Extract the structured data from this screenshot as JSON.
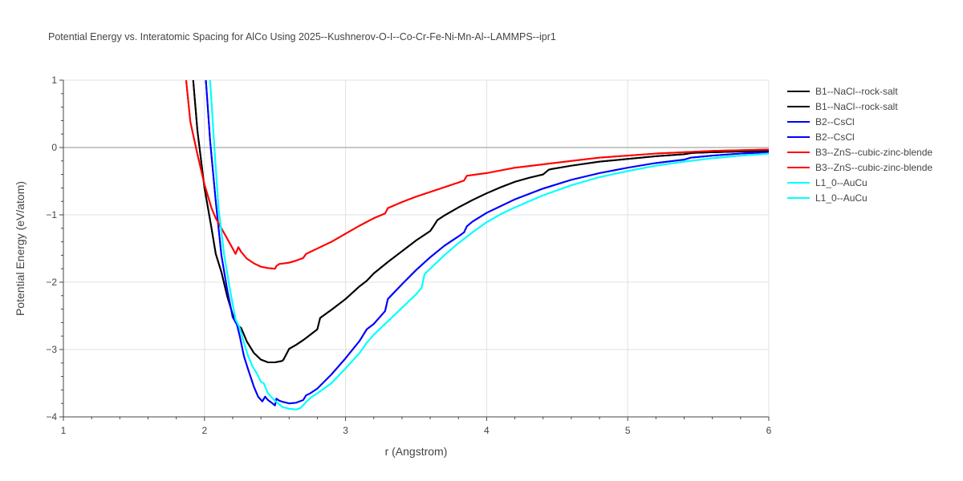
{
  "chart_data": {
    "type": "line",
    "title": "Potential Energy vs. Interatomic Spacing for AlCo Using 2025--Kushnerov-O-I--Co-Cr-Fe-Ni-Mn-Al--LAMMPS--ipr1",
    "xlabel": "r (Angstrom)",
    "ylabel": "Potential Energy (eV/atom)",
    "xlim": [
      1,
      6
    ],
    "ylim": [
      -4,
      1
    ],
    "xticks": [
      1,
      2,
      3,
      4,
      5,
      6
    ],
    "yticks": [
      1,
      0,
      -1,
      -2,
      -3,
      -4
    ],
    "grid": true,
    "legend_position": "right",
    "series": [
      {
        "name": "B1--NaCl--rock-salt",
        "color": "#000000",
        "x": [
          1.92,
          1.95,
          2.0,
          2.05,
          2.08,
          2.12,
          2.16,
          2.2,
          2.23,
          2.26,
          2.3,
          2.35,
          2.4,
          2.45,
          2.5,
          2.55,
          2.56,
          2.6,
          2.65,
          2.7,
          2.75,
          2.8,
          2.82,
          2.9,
          3.0,
          3.1,
          3.15,
          3.2,
          3.3,
          3.4,
          3.5,
          3.6,
          3.62,
          3.65,
          3.7,
          3.8,
          3.9,
          4.0,
          4.1,
          4.2,
          4.3,
          4.4,
          4.44,
          4.46,
          4.6,
          4.8,
          5.0,
          5.2,
          5.4,
          5.46,
          5.6,
          5.8,
          6.0
        ],
        "y": [
          1.0,
          0.25,
          -0.6,
          -1.2,
          -1.58,
          -1.85,
          -2.2,
          -2.48,
          -2.63,
          -2.68,
          -2.88,
          -3.05,
          -3.15,
          -3.19,
          -3.19,
          -3.17,
          -3.15,
          -2.99,
          -2.93,
          -2.86,
          -2.78,
          -2.7,
          -2.53,
          -2.41,
          -2.25,
          -2.06,
          -1.98,
          -1.87,
          -1.7,
          -1.54,
          -1.38,
          -1.24,
          -1.18,
          -1.08,
          -1.01,
          -0.89,
          -0.78,
          -0.68,
          -0.59,
          -0.51,
          -0.45,
          -0.4,
          -0.33,
          -0.32,
          -0.27,
          -0.21,
          -0.17,
          -0.13,
          -0.1,
          -0.08,
          -0.07,
          -0.06,
          -0.05
        ]
      },
      {
        "name": "B1--NaCl--rock-salt",
        "color": "#000000",
        "x": [
          1.92,
          1.95,
          2.0,
          2.05,
          2.08,
          2.12,
          2.16,
          2.2,
          2.23,
          2.26,
          2.3,
          2.35,
          2.4,
          2.45,
          2.5,
          2.55,
          2.56,
          2.6,
          2.65,
          2.7,
          2.75,
          2.8,
          2.82,
          2.9,
          3.0,
          3.1,
          3.15,
          3.2,
          3.3,
          3.4,
          3.5,
          3.6,
          3.62,
          3.65,
          3.7,
          3.8,
          3.9,
          4.0,
          4.1,
          4.2,
          4.3,
          4.4,
          4.44,
          4.46,
          4.6,
          4.8,
          5.0,
          5.2,
          5.4,
          5.46,
          5.6,
          5.8,
          6.0
        ],
        "y": [
          1.0,
          0.25,
          -0.6,
          -1.2,
          -1.58,
          -1.85,
          -2.2,
          -2.48,
          -2.63,
          -2.68,
          -2.88,
          -3.05,
          -3.15,
          -3.19,
          -3.19,
          -3.17,
          -3.15,
          -2.99,
          -2.93,
          -2.86,
          -2.78,
          -2.7,
          -2.53,
          -2.41,
          -2.25,
          -2.06,
          -1.98,
          -1.87,
          -1.7,
          -1.54,
          -1.38,
          -1.24,
          -1.18,
          -1.08,
          -1.01,
          -0.89,
          -0.78,
          -0.68,
          -0.59,
          -0.51,
          -0.45,
          -0.4,
          -0.33,
          -0.32,
          -0.27,
          -0.21,
          -0.17,
          -0.13,
          -0.1,
          -0.08,
          -0.07,
          -0.06,
          -0.05
        ]
      },
      {
        "name": "B2--CsCl",
        "color": "#0000ff",
        "x": [
          2.01,
          2.04,
          2.08,
          2.12,
          2.16,
          2.2,
          2.23,
          2.25,
          2.28,
          2.31,
          2.35,
          2.38,
          2.41,
          2.43,
          2.45,
          2.47,
          2.5,
          2.51,
          2.53,
          2.56,
          2.6,
          2.65,
          2.7,
          2.72,
          2.75,
          2.8,
          2.9,
          3.0,
          3.1,
          3.15,
          3.2,
          3.28,
          3.3,
          3.4,
          3.5,
          3.6,
          3.7,
          3.8,
          3.84,
          3.86,
          3.9,
          4.0,
          4.2,
          4.4,
          4.6,
          4.8,
          5.0,
          5.2,
          5.4,
          5.45,
          5.6,
          5.8,
          6.0
        ],
        "y": [
          1.0,
          0.1,
          -0.8,
          -1.6,
          -2.1,
          -2.52,
          -2.63,
          -2.8,
          -3.1,
          -3.3,
          -3.55,
          -3.7,
          -3.77,
          -3.7,
          -3.75,
          -3.78,
          -3.83,
          -3.73,
          -3.76,
          -3.78,
          -3.8,
          -3.79,
          -3.75,
          -3.68,
          -3.65,
          -3.58,
          -3.37,
          -3.13,
          -2.87,
          -2.7,
          -2.62,
          -2.43,
          -2.25,
          -2.03,
          -1.82,
          -1.63,
          -1.46,
          -1.32,
          -1.26,
          -1.17,
          -1.1,
          -0.97,
          -0.77,
          -0.61,
          -0.48,
          -0.38,
          -0.3,
          -0.23,
          -0.18,
          -0.15,
          -0.12,
          -0.09,
          -0.07
        ]
      },
      {
        "name": "B2--CsCl",
        "color": "#0000ff",
        "x": [
          2.01,
          2.04,
          2.08,
          2.12,
          2.16,
          2.2,
          2.23,
          2.25,
          2.28,
          2.31,
          2.35,
          2.38,
          2.41,
          2.43,
          2.45,
          2.47,
          2.5,
          2.51,
          2.53,
          2.56,
          2.6,
          2.65,
          2.7,
          2.72,
          2.75,
          2.8,
          2.9,
          3.0,
          3.1,
          3.15,
          3.2,
          3.28,
          3.3,
          3.4,
          3.5,
          3.6,
          3.7,
          3.8,
          3.84,
          3.86,
          3.9,
          4.0,
          4.2,
          4.4,
          4.6,
          4.8,
          5.0,
          5.2,
          5.4,
          5.45,
          5.6,
          5.8,
          6.0
        ],
        "y": [
          1.0,
          0.1,
          -0.8,
          -1.6,
          -2.1,
          -2.52,
          -2.63,
          -2.8,
          -3.1,
          -3.3,
          -3.55,
          -3.7,
          -3.77,
          -3.7,
          -3.75,
          -3.78,
          -3.83,
          -3.73,
          -3.76,
          -3.78,
          -3.8,
          -3.79,
          -3.75,
          -3.68,
          -3.65,
          -3.58,
          -3.37,
          -3.13,
          -2.87,
          -2.7,
          -2.62,
          -2.43,
          -2.25,
          -2.03,
          -1.82,
          -1.63,
          -1.46,
          -1.32,
          -1.26,
          -1.17,
          -1.1,
          -0.97,
          -0.77,
          -0.61,
          -0.48,
          -0.38,
          -0.3,
          -0.23,
          -0.18,
          -0.15,
          -0.12,
          -0.09,
          -0.07
        ]
      },
      {
        "name": "B3--ZnS--cubic-zinc-blende",
        "color": "#ff0000",
        "x": [
          1.87,
          1.9,
          1.95,
          2.0,
          2.05,
          2.08,
          2.12,
          2.16,
          2.2,
          2.22,
          2.24,
          2.26,
          2.28,
          2.3,
          2.35,
          2.4,
          2.45,
          2.5,
          2.51,
          2.53,
          2.6,
          2.65,
          2.7,
          2.72,
          2.8,
          2.9,
          3.0,
          3.1,
          3.2,
          3.28,
          3.3,
          3.4,
          3.5,
          3.6,
          3.7,
          3.8,
          3.84,
          3.86,
          4.0,
          4.2,
          4.4,
          4.6,
          4.8,
          5.0,
          5.2,
          5.4,
          5.6,
          5.8,
          6.0
        ],
        "y": [
          1.0,
          0.38,
          -0.1,
          -0.55,
          -0.9,
          -1.05,
          -1.2,
          -1.35,
          -1.5,
          -1.58,
          -1.48,
          -1.55,
          -1.6,
          -1.65,
          -1.72,
          -1.77,
          -1.79,
          -1.8,
          -1.76,
          -1.73,
          -1.71,
          -1.68,
          -1.64,
          -1.58,
          -1.5,
          -1.4,
          -1.28,
          -1.16,
          -1.05,
          -0.98,
          -0.9,
          -0.81,
          -0.73,
          -0.66,
          -0.59,
          -0.52,
          -0.49,
          -0.42,
          -0.38,
          -0.3,
          -0.25,
          -0.2,
          -0.15,
          -0.12,
          -0.09,
          -0.07,
          -0.05,
          -0.04,
          -0.03
        ]
      },
      {
        "name": "B3--ZnS--cubic-zinc-blende",
        "color": "#ff0000",
        "x": [
          1.87,
          1.9,
          1.95,
          2.0,
          2.05,
          2.08,
          2.12,
          2.16,
          2.2,
          2.22,
          2.24,
          2.26,
          2.28,
          2.3,
          2.35,
          2.4,
          2.45,
          2.5,
          2.51,
          2.53,
          2.6,
          2.65,
          2.7,
          2.72,
          2.8,
          2.9,
          3.0,
          3.1,
          3.2,
          3.28,
          3.3,
          3.4,
          3.5,
          3.6,
          3.7,
          3.8,
          3.84,
          3.86,
          4.0,
          4.2,
          4.4,
          4.6,
          4.8,
          5.0,
          5.2,
          5.4,
          5.6,
          5.8,
          6.0
        ],
        "y": [
          1.0,
          0.38,
          -0.1,
          -0.55,
          -0.9,
          -1.05,
          -1.2,
          -1.35,
          -1.5,
          -1.58,
          -1.48,
          -1.55,
          -1.6,
          -1.65,
          -1.72,
          -1.77,
          -1.79,
          -1.8,
          -1.76,
          -1.73,
          -1.71,
          -1.68,
          -1.64,
          -1.58,
          -1.5,
          -1.4,
          -1.28,
          -1.16,
          -1.05,
          -0.98,
          -0.9,
          -0.81,
          -0.73,
          -0.66,
          -0.59,
          -0.52,
          -0.49,
          -0.42,
          -0.38,
          -0.3,
          -0.25,
          -0.2,
          -0.15,
          -0.12,
          -0.09,
          -0.07,
          -0.05,
          -0.04,
          -0.03
        ]
      },
      {
        "name": "L1_0--AuCu",
        "color": "#00ffff",
        "x": [
          2.04,
          2.07,
          2.1,
          2.14,
          2.18,
          2.22,
          2.25,
          2.28,
          2.31,
          2.34,
          2.37,
          2.4,
          2.42,
          2.45,
          2.48,
          2.51,
          2.55,
          2.6,
          2.65,
          2.68,
          2.72,
          2.75,
          2.8,
          2.9,
          3.0,
          3.1,
          3.15,
          3.2,
          3.3,
          3.4,
          3.5,
          3.54,
          3.56,
          3.6,
          3.7,
          3.8,
          3.9,
          4.0,
          4.1,
          4.2,
          4.3,
          4.4,
          4.6,
          4.8,
          5.0,
          5.2,
          5.4,
          5.6,
          5.8,
          6.0
        ],
        "y": [
          1.0,
          0.0,
          -0.9,
          -1.6,
          -2.1,
          -2.55,
          -2.68,
          -2.9,
          -3.1,
          -3.25,
          -3.35,
          -3.48,
          -3.5,
          -3.65,
          -3.72,
          -3.78,
          -3.85,
          -3.88,
          -3.89,
          -3.87,
          -3.78,
          -3.72,
          -3.65,
          -3.5,
          -3.28,
          -3.05,
          -2.9,
          -2.78,
          -2.58,
          -2.38,
          -2.18,
          -2.08,
          -1.88,
          -1.8,
          -1.6,
          -1.42,
          -1.26,
          -1.11,
          -0.99,
          -0.89,
          -0.8,
          -0.71,
          -0.56,
          -0.44,
          -0.35,
          -0.27,
          -0.21,
          -0.16,
          -0.12,
          -0.09
        ]
      },
      {
        "name": "L1_0--AuCu",
        "color": "#00ffff",
        "x": [
          2.04,
          2.07,
          2.1,
          2.14,
          2.18,
          2.22,
          2.25,
          2.28,
          2.31,
          2.34,
          2.37,
          2.4,
          2.42,
          2.45,
          2.48,
          2.51,
          2.55,
          2.6,
          2.65,
          2.68,
          2.72,
          2.75,
          2.8,
          2.9,
          3.0,
          3.1,
          3.15,
          3.2,
          3.3,
          3.4,
          3.5,
          3.54,
          3.56,
          3.6,
          3.7,
          3.8,
          3.9,
          4.0,
          4.1,
          4.2,
          4.3,
          4.4,
          4.6,
          4.8,
          5.0,
          5.2,
          5.4,
          5.6,
          5.8,
          6.0
        ],
        "y": [
          1.0,
          0.0,
          -0.9,
          -1.6,
          -2.1,
          -2.55,
          -2.68,
          -2.9,
          -3.1,
          -3.25,
          -3.35,
          -3.48,
          -3.5,
          -3.65,
          -3.72,
          -3.78,
          -3.85,
          -3.88,
          -3.89,
          -3.87,
          -3.78,
          -3.72,
          -3.65,
          -3.5,
          -3.28,
          -3.05,
          -2.9,
          -2.78,
          -2.58,
          -2.38,
          -2.18,
          -2.08,
          -1.88,
          -1.8,
          -1.6,
          -1.42,
          -1.26,
          -1.11,
          -0.99,
          -0.89,
          -0.8,
          -0.71,
          -0.56,
          -0.44,
          -0.35,
          -0.27,
          -0.21,
          -0.16,
          -0.12,
          -0.09
        ]
      }
    ]
  }
}
